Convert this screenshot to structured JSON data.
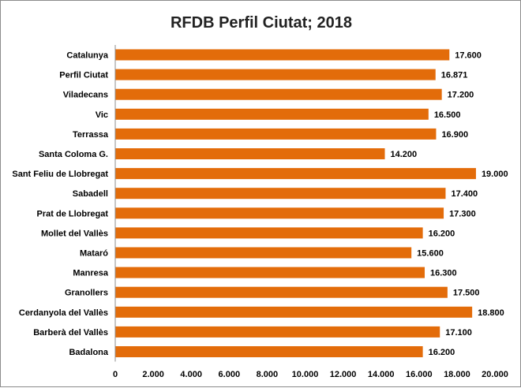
{
  "chart_data": {
    "type": "bar",
    "orientation": "horizontal",
    "title": "RFDB Perfil Ciutat; 2018",
    "categories": [
      "Catalunya",
      "Perfil Ciutat",
      "Viladecans",
      "Vic",
      "Terrassa",
      "Santa Coloma G.",
      "Sant Feliu de Llobregat",
      "Sabadell",
      "Prat de Llobregat",
      "Mollet del Vallès",
      "Mataró",
      "Manresa",
      "Granollers",
      "Cerdanyola del Vallès",
      "Barberà del Vallès",
      "Badalona"
    ],
    "values": [
      17600,
      16871,
      17200,
      16500,
      16900,
      14200,
      19000,
      17400,
      17300,
      16200,
      15600,
      16300,
      17500,
      18800,
      17100,
      16200
    ],
    "value_labels": [
      "17.600",
      "16.871",
      "17.200",
      "16.500",
      "16.900",
      "14.200",
      "19.000",
      "17.400",
      "17.300",
      "16.200",
      "15.600",
      "16.300",
      "17.500",
      "18.800",
      "17.100",
      "16.200"
    ],
    "xlim": [
      0,
      20000
    ],
    "x_ticks": [
      0,
      2000,
      4000,
      6000,
      8000,
      10000,
      12000,
      14000,
      16000,
      18000,
      20000
    ],
    "x_tick_labels": [
      "0",
      "2.000",
      "4.000",
      "6.000",
      "8.000",
      "10.000",
      "12.000",
      "14.000",
      "16.000",
      "18.000",
      "20.000"
    ],
    "grid": false,
    "legend": "none",
    "bar_color": "#e36c0a"
  }
}
